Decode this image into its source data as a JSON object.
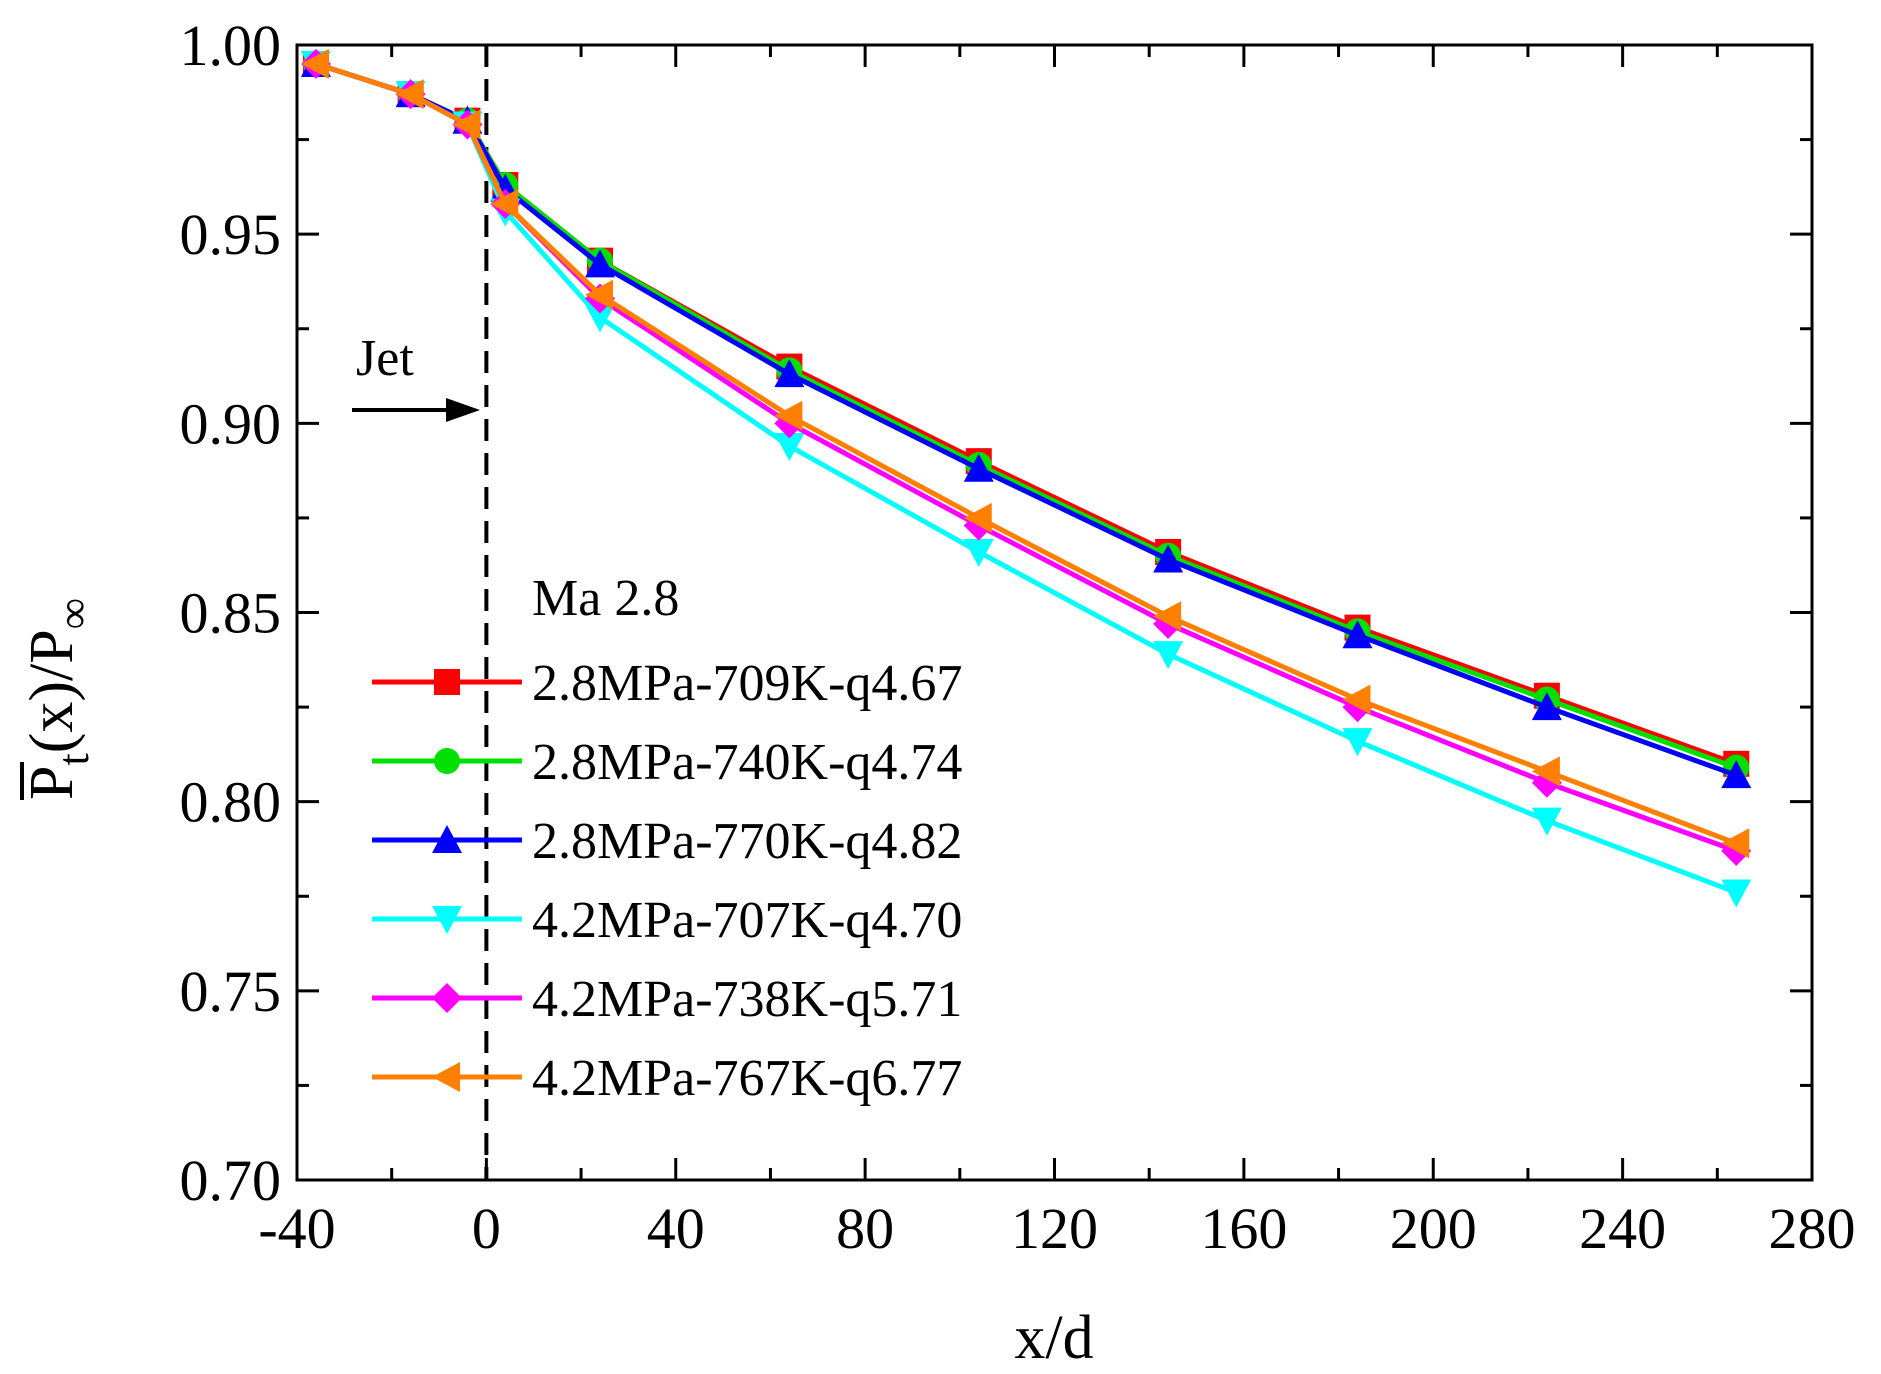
{
  "chart_data": {
    "type": "line",
    "title": "",
    "xlabel": "x/d",
    "ylabel": {
      "main": "P",
      "sub": "t",
      "rest": "(x)/P",
      "sub2": "∞"
    },
    "xlim": [
      -40,
      280
    ],
    "ylim": [
      0.7,
      1.0
    ],
    "xticks": [
      -40,
      0,
      40,
      80,
      120,
      160,
      200,
      240,
      280
    ],
    "xtick_labels": [
      "-40",
      "0",
      "40",
      "80",
      "120",
      "160",
      "200",
      "240",
      "280"
    ],
    "yticks": [
      0.7,
      0.75,
      0.8,
      0.85,
      0.9,
      0.95,
      1.0
    ],
    "ytick_labels": [
      "0.70",
      "0.75",
      "0.80",
      "0.85",
      "0.90",
      "0.95",
      "1.00"
    ],
    "grid": false,
    "legend_title": "Ma 2.8",
    "legend_position": "lower-left",
    "annotations": {
      "jet_label": "Jet",
      "jet_line_x": 0
    },
    "x": [
      -36,
      -16,
      -4,
      4,
      24,
      64,
      104,
      144,
      184,
      224,
      264
    ],
    "series": [
      {
        "name": "2.8MPa-709K-q4.67",
        "color": "#ff0000",
        "marker": "square",
        "values": [
          0.995,
          0.987,
          0.98,
          0.963,
          0.943,
          0.915,
          0.89,
          0.866,
          0.846,
          0.828,
          0.81
        ]
      },
      {
        "name": "2.8MPa-740K-q4.74",
        "color": "#00e000",
        "marker": "circle",
        "values": [
          0.995,
          0.987,
          0.98,
          0.963,
          0.943,
          0.914,
          0.889,
          0.865,
          0.845,
          0.827,
          0.809
        ]
      },
      {
        "name": "2.8MPa-770K-q4.82",
        "color": "#0000ff",
        "marker": "triangle-up",
        "values": [
          0.995,
          0.987,
          0.98,
          0.962,
          0.942,
          0.913,
          0.888,
          0.864,
          0.844,
          0.825,
          0.807
        ]
      },
      {
        "name": "4.2MPa-707K-q4.70",
        "color": "#00ffff",
        "marker": "triangle-down",
        "values": [
          0.995,
          0.987,
          0.979,
          0.956,
          0.928,
          0.894,
          0.866,
          0.839,
          0.816,
          0.795,
          0.776
        ]
      },
      {
        "name": "4.2MPa-738K-q5.71",
        "color": "#ff00ff",
        "marker": "diamond",
        "values": [
          0.995,
          0.987,
          0.979,
          0.958,
          0.933,
          0.9,
          0.873,
          0.847,
          0.825,
          0.805,
          0.787
        ]
      },
      {
        "name": "4.2MPa-767K-q6.77",
        "color": "#ff8000",
        "marker": "triangle-left",
        "values": [
          0.995,
          0.987,
          0.979,
          0.958,
          0.934,
          0.902,
          0.875,
          0.849,
          0.827,
          0.808,
          0.789
        ]
      }
    ]
  }
}
